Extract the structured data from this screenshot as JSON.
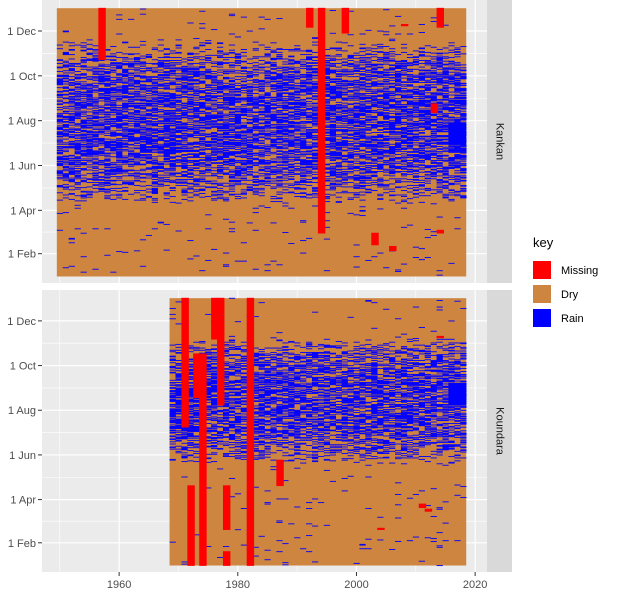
{
  "chart_data": {
    "type": "heatmap",
    "title": "",
    "xlabel": "",
    "ylabel": "",
    "x_ticks": [
      1960,
      1980,
      2000,
      2020
    ],
    "y_ticks": [
      {
        "label": "1 Feb",
        "doy": 32
      },
      {
        "label": "1 Apr",
        "doy": 91
      },
      {
        "label": "1 Jun",
        "doy": 152
      },
      {
        "label": "1 Aug",
        "doy": 213
      },
      {
        "label": "1 Oct",
        "doy": 274
      },
      {
        "label": "1 Dec",
        "doy": 335
      }
    ],
    "xlim": [
      1947,
      2022
    ],
    "ylim_doy": [
      1,
      366
    ],
    "legend": {
      "title": "key",
      "position": "right",
      "items": [
        {
          "label": "Missing",
          "color": "#ff0000"
        },
        {
          "label": "Dry",
          "color": "#cd853f"
        },
        {
          "label": "Rain",
          "color": "#0000ff"
        }
      ]
    },
    "colors": {
      "panel_bg": "#ebebeb",
      "grid": "#ffffff",
      "strip_bg": "#d9d9d9"
    },
    "panels": [
      {
        "station": "Kankan",
        "years": [
          1950,
          2018
        ],
        "rainy_season_doy": [
          100,
          320
        ],
        "missing": [
          {
            "year": 1957,
            "doy_start": 296,
            "doy_end": 366
          },
          {
            "year": 1992,
            "doy_start": 340,
            "doy_end": 366
          },
          {
            "year": 1994,
            "doy_start": 60,
            "doy_end": 366
          },
          {
            "year": 1998,
            "doy_start": 332,
            "doy_end": 366
          },
          {
            "year": 2003,
            "doy_start": 44,
            "doy_end": 60
          },
          {
            "year": 2006,
            "doy_start": 36,
            "doy_end": 42
          },
          {
            "year": 2008,
            "doy_start": 342,
            "doy_end": 344
          },
          {
            "year": 2013,
            "doy_start": 224,
            "doy_end": 236
          },
          {
            "year": 2014,
            "doy_start": 340,
            "doy_end": 366
          },
          {
            "year": 2014,
            "doy_start": 60,
            "doy_end": 64
          }
        ]
      },
      {
        "station": "Koundara",
        "years": [
          1969,
          2018
        ],
        "rainy_season_doy": [
          140,
          310
        ],
        "missing": [
          {
            "year": 1971,
            "doy_start": 190,
            "doy_end": 366
          },
          {
            "year": 1972,
            "doy_start": 1,
            "doy_end": 110
          },
          {
            "year": 1973,
            "doy_start": 230,
            "doy_end": 290
          },
          {
            "year": 1974,
            "doy_start": 1,
            "doy_end": 290
          },
          {
            "year": 1976,
            "doy_start": 310,
            "doy_end": 366
          },
          {
            "year": 1977,
            "doy_start": 220,
            "doy_end": 366
          },
          {
            "year": 1978,
            "doy_start": 50,
            "doy_end": 110
          },
          {
            "year": 1978,
            "doy_start": 1,
            "doy_end": 20
          },
          {
            "year": 1982,
            "doy_start": 1,
            "doy_end": 366
          },
          {
            "year": 1987,
            "doy_start": 110,
            "doy_end": 145
          },
          {
            "year": 2004,
            "doy_start": 50,
            "doy_end": 52
          },
          {
            "year": 2011,
            "doy_start": 80,
            "doy_end": 85
          },
          {
            "year": 2012,
            "doy_start": 75,
            "doy_end": 78
          },
          {
            "year": 2014,
            "doy_start": 312,
            "doy_end": 314
          }
        ]
      }
    ]
  }
}
